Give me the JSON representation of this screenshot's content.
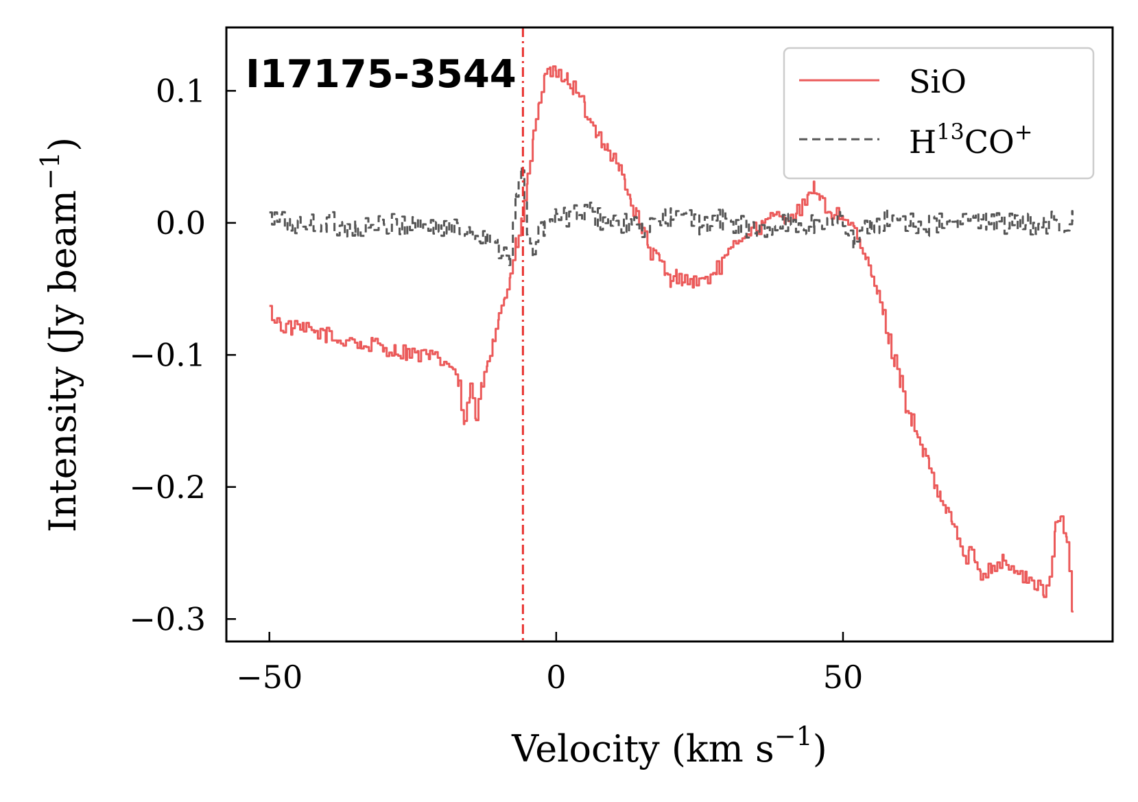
{
  "chart_data": {
    "type": "line",
    "title": "",
    "annotation": "I17175-3544",
    "xlabel": "Velocity (km s",
    "xlabel_sup": "−1",
    "xlabel_tail": ")",
    "ylabel": "Intensity (Jy beam",
    "ylabel_sup": "−1",
    "ylabel_tail": ")",
    "xlim": [
      -57.5,
      97.0
    ],
    "ylim": [
      -0.317,
      0.148
    ],
    "x_ticks": [
      -50,
      0,
      50
    ],
    "x_tick_labels": [
      "−50",
      "0",
      "50"
    ],
    "y_ticks": [
      0.1,
      0.0,
      -0.1,
      -0.2,
      -0.3
    ],
    "y_tick_labels": [
      "0.1",
      "0.0",
      "−0.1",
      "−0.2",
      "−0.3"
    ],
    "grid": false,
    "legend_position": "top-right",
    "vline": {
      "x": -5.8,
      "style": "dash-dot",
      "color": "#e8312f"
    },
    "series": [
      {
        "name": "SiO",
        "label_main": "SiO",
        "style": "solid",
        "color": "#eb5a5a",
        "x": [
          -50,
          -48,
          -46,
          -44,
          -42,
          -40,
          -38,
          -36,
          -34,
          -32,
          -30,
          -28,
          -26,
          -24,
          -22,
          -20,
          -18,
          -17,
          -16,
          -15,
          -14,
          -13,
          -12,
          -11,
          -10,
          -9,
          -8,
          -7,
          -6,
          -5,
          -4,
          -3,
          -2,
          -1,
          0,
          1,
          2,
          3,
          4,
          5,
          6,
          7,
          8,
          9,
          10,
          11,
          12,
          13,
          14,
          15,
          16,
          17,
          18,
          19,
          20,
          21,
          22,
          24,
          26,
          28,
          30,
          32,
          34,
          36,
          38,
          40,
          42,
          44,
          45,
          46,
          48,
          50,
          52,
          53,
          54,
          55,
          56,
          57,
          58,
          59,
          60,
          61,
          62,
          63,
          64,
          65,
          66,
          67,
          68,
          69,
          70,
          71,
          72,
          73,
          74,
          76,
          78,
          80,
          82,
          84,
          85,
          86,
          87,
          88,
          89,
          90
        ],
        "y": [
          -0.067,
          -0.078,
          -0.08,
          -0.081,
          -0.083,
          -0.085,
          -0.09,
          -0.087,
          -0.094,
          -0.092,
          -0.095,
          -0.097,
          -0.098,
          -0.1,
          -0.102,
          -0.105,
          -0.11,
          -0.125,
          -0.155,
          -0.125,
          -0.15,
          -0.122,
          -0.103,
          -0.085,
          -0.07,
          -0.055,
          -0.04,
          -0.015,
          0.0,
          0.035,
          0.065,
          0.095,
          0.108,
          0.115,
          0.11,
          0.112,
          0.108,
          0.102,
          0.095,
          0.085,
          0.075,
          0.07,
          0.062,
          0.055,
          0.048,
          0.04,
          0.03,
          0.015,
          0.005,
          -0.005,
          -0.02,
          -0.025,
          -0.028,
          -0.04,
          -0.045,
          -0.04,
          -0.042,
          -0.045,
          -0.043,
          -0.035,
          -0.025,
          -0.01,
          -0.005,
          -0.002,
          0.005,
          0.005,
          0.008,
          0.018,
          0.028,
          0.015,
          0.008,
          0.005,
          -0.005,
          -0.02,
          -0.03,
          -0.04,
          -0.055,
          -0.07,
          -0.09,
          -0.105,
          -0.12,
          -0.14,
          -0.15,
          -0.165,
          -0.175,
          -0.185,
          -0.2,
          -0.21,
          -0.22,
          -0.225,
          -0.24,
          -0.255,
          -0.25,
          -0.255,
          -0.265,
          -0.26,
          -0.255,
          -0.265,
          -0.27,
          -0.275,
          -0.285,
          -0.27,
          -0.23,
          -0.22,
          -0.24,
          -0.295
        ],
        "noise": 0.006
      },
      {
        "name": "H13CO+",
        "label_main": "H",
        "label_sup": "13",
        "label_tail": "CO",
        "label_sup2": "+",
        "style": "dashed",
        "color": "#555555",
        "x": [
          -50,
          -45,
          -40,
          -35,
          -30,
          -25,
          -20,
          -15,
          -12,
          -10,
          -8,
          -7,
          -6,
          -5,
          -4,
          -2,
          0,
          5,
          10,
          15,
          20,
          25,
          30,
          35,
          40,
          45,
          50,
          52,
          55,
          60,
          65,
          70,
          75,
          80,
          85,
          90
        ],
        "y": [
          0.003,
          -0.002,
          0.0,
          -0.004,
          -0.003,
          0.0,
          -0.004,
          -0.006,
          -0.01,
          -0.018,
          -0.025,
          0.02,
          0.04,
          -0.015,
          -0.02,
          0.0,
          0.003,
          0.008,
          0.0,
          -0.005,
          0.005,
          0.0,
          0.002,
          -0.008,
          0.0,
          -0.002,
          0.003,
          -0.015,
          0.0,
          0.003,
          -0.002,
          0.0,
          0.003,
          -0.002,
          0.0,
          0.001
        ],
        "noise": 0.009
      }
    ]
  }
}
